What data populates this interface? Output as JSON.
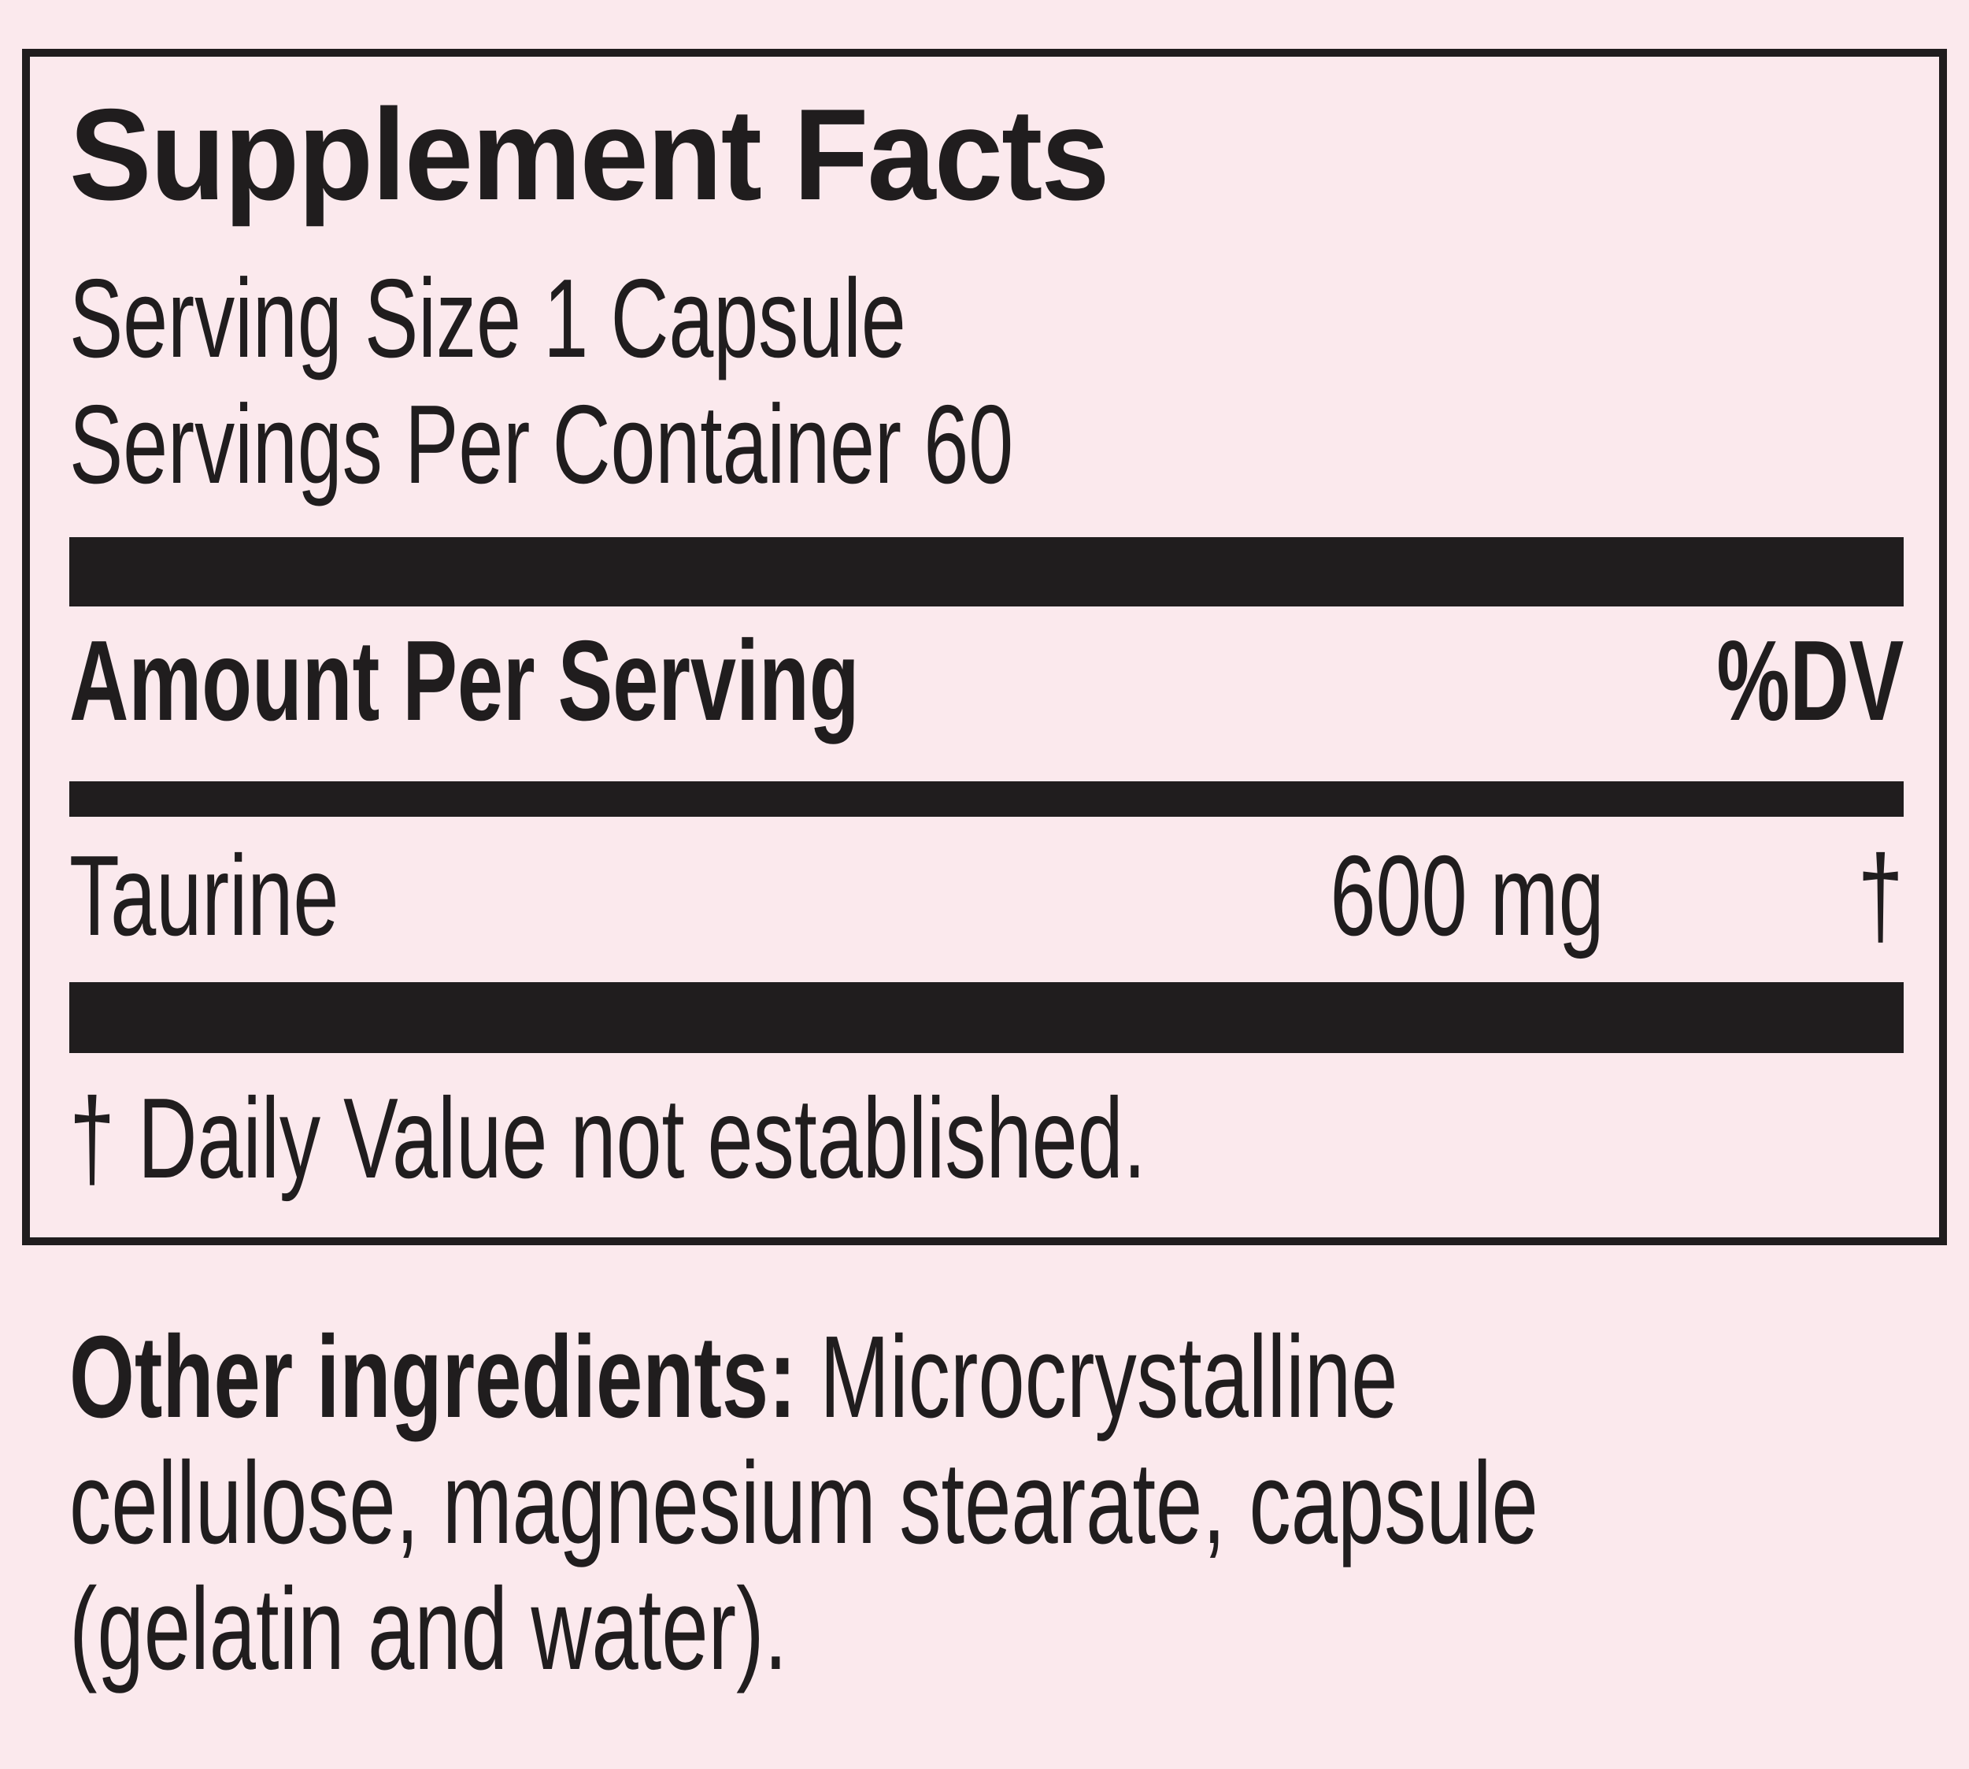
{
  "colors": {
    "background": "#fbe9ed",
    "ink": "#201d1e"
  },
  "label": {
    "title": "Supplement Facts",
    "serving_size": "Serving Size 1 Capsule",
    "servings_per_container": "Servings Per Container 60",
    "header": {
      "amount_per_serving": "Amount Per Serving",
      "daily_value": "%DV"
    },
    "rows": [
      {
        "name": "Taurine",
        "amount": "600 mg",
        "daily_value": "†"
      }
    ],
    "footnote": "† Daily Value not established."
  },
  "other_ingredients": {
    "lead": "Other ingredients:",
    "line1_rest": " Microcrystalline",
    "line2": "cellulose, magnesium stearate, capsule",
    "line3": "(gelatin and water)."
  }
}
